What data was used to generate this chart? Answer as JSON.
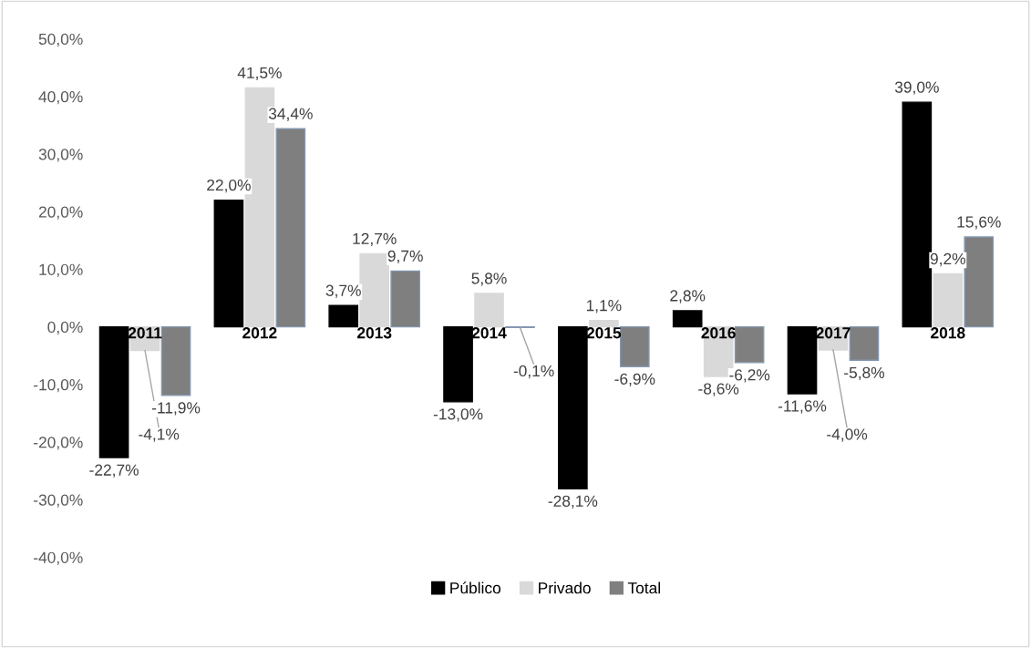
{
  "chart_data": {
    "type": "bar",
    "categories": [
      "2011",
      "2012",
      "2013",
      "2014",
      "2015",
      "2016",
      "2017",
      "2018"
    ],
    "series": [
      {
        "name": "Público",
        "color": "#000000",
        "values": [
          -22.7,
          22.0,
          3.7,
          -13.0,
          -28.1,
          2.8,
          -11.6,
          39.0
        ],
        "value_labels": [
          "-22,7%",
          "22,0%",
          "3,7%",
          "-13,0%",
          "-28,1%",
          "2,8%",
          "-11,6%",
          "39,0%"
        ]
      },
      {
        "name": "Privado",
        "color": "#d9d9d9",
        "values": [
          -4.1,
          41.5,
          12.7,
          5.8,
          1.1,
          -8.6,
          -4.0,
          9.2
        ],
        "value_labels": [
          "-4,1%",
          "41,5%",
          "12,7%",
          "5,8%",
          "1,1%",
          "-8,6%",
          "-4,0%",
          "9,2%"
        ]
      },
      {
        "name": "Total",
        "color": "#7f7f7f",
        "values": [
          -11.9,
          34.4,
          9.7,
          -0.1,
          -6.9,
          -6.2,
          -5.8,
          15.6
        ],
        "value_labels": [
          "-11,9%",
          "34,4%",
          "9,7%",
          "-0,1%",
          "-6,9%",
          "-6,2%",
          "-5,8%",
          "15,6%"
        ]
      }
    ],
    "ylim": [
      -40,
      50
    ],
    "yticks": [
      {
        "value": -40,
        "label": "-40,0%"
      },
      {
        "value": -30,
        "label": "-30,0%"
      },
      {
        "value": -20,
        "label": "-20,0%"
      },
      {
        "value": -10,
        "label": "-10,0%"
      },
      {
        "value": 0,
        "label": "0,0%"
      },
      {
        "value": 10,
        "label": "10,0%"
      },
      {
        "value": 20,
        "label": "20,0%"
      },
      {
        "value": 30,
        "label": "30,0%"
      },
      {
        "value": 40,
        "label": "40,0%"
      },
      {
        "value": 50,
        "label": "50,0%"
      }
    ],
    "grid": false,
    "legend": "bottom"
  }
}
